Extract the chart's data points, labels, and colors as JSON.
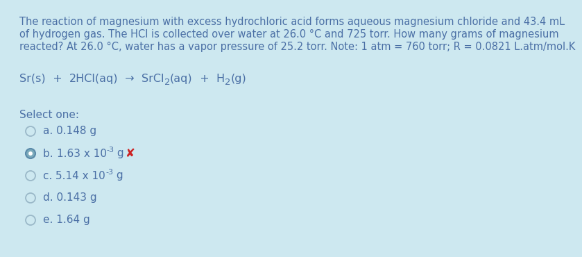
{
  "background_color": "#cde8f0",
  "question_line1": "The reaction of magnesium with excess hydrochloric acid forms aqueous magnesium chloride and 43.4 mL",
  "question_line2": "of hydrogen gas. The HCl is collected over water at 26.0 °C and 725 torr. How many grams of magnesium",
  "question_line3": "reacted? At 26.0 °C, water has a vapor pressure of 25.2 torr. Note: 1 atm = 760 torr; R = 0.0821 L.atm/mol.K",
  "select_one_text": "Select one:",
  "options": [
    {
      "label": "a.",
      "text": "0.148 g",
      "selected": false,
      "wrong": false
    },
    {
      "label": "b.",
      "text_base": "1.63 x 10",
      "text_sup": "-3",
      "text_end": " g",
      "selected": true,
      "wrong": true
    },
    {
      "label": "c.",
      "text_base": "5.14 x 10",
      "text_sup": "-3",
      "text_end": " g",
      "selected": false,
      "wrong": false
    },
    {
      "label": "d.",
      "text": "0.143 g",
      "selected": false,
      "wrong": false
    },
    {
      "label": "e.",
      "text": "1.64 g",
      "selected": false,
      "wrong": false
    }
  ],
  "text_color": "#4a6fa5",
  "circle_color_unsel": "#9ab8c8",
  "circle_color_sel": "#5a8aaa",
  "circle_fill_sel": "#7aaabb",
  "wrong_color": "#cc2222",
  "font_size_q": 10.5,
  "font_size_eq": 11.5,
  "font_size_opt": 11.0
}
